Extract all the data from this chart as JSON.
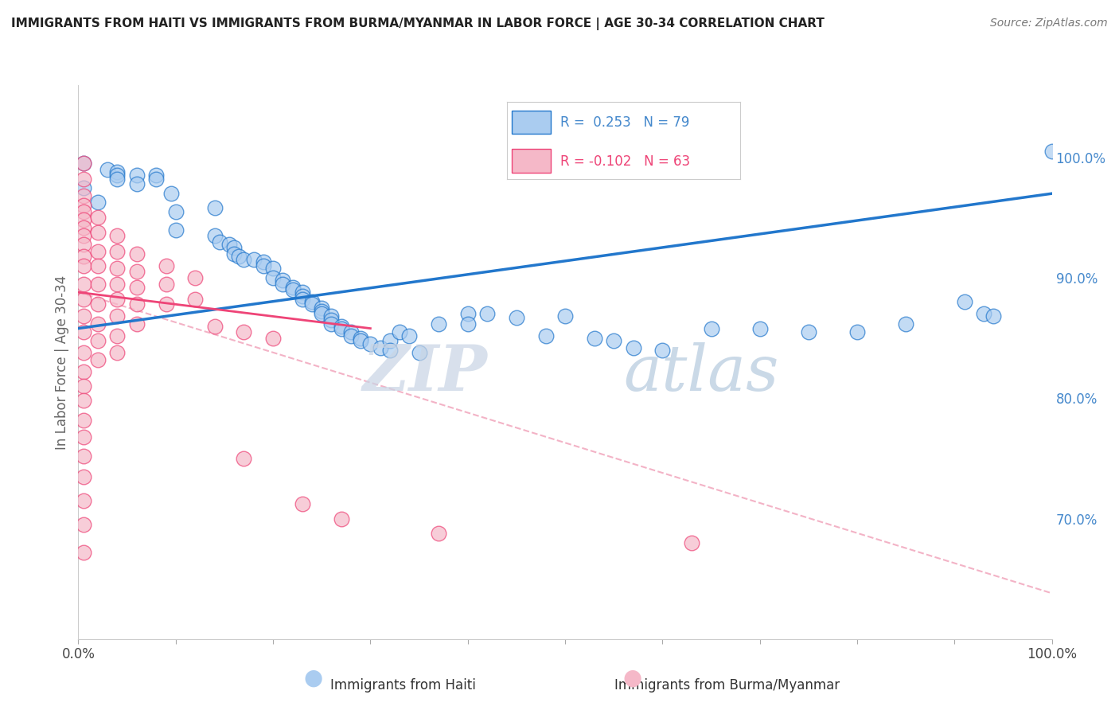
{
  "title": "IMMIGRANTS FROM HAITI VS IMMIGRANTS FROM BURMA/MYANMAR IN LABOR FORCE | AGE 30-34 CORRELATION CHART",
  "source": "Source: ZipAtlas.com",
  "ylabel": "In Labor Force | Age 30-34",
  "xlim": [
    0.0,
    1.0
  ],
  "ylim": [
    0.6,
    1.06
  ],
  "legend_haiti": {
    "R": 0.253,
    "N": 79
  },
  "legend_burma": {
    "R": -0.102,
    "N": 63
  },
  "haiti_scatter_color": "#aaccf0",
  "burma_scatter_color": "#f5b8c8",
  "haiti_line_color": "#2277cc",
  "burma_line_color": "#ee4477",
  "dashed_line_color": "#f0a0b8",
  "grid_color": "#ccccdd",
  "background_color": "#ffffff",
  "haiti_points": [
    [
      0.005,
      0.995
    ],
    [
      0.005,
      0.975
    ],
    [
      0.03,
      0.99
    ],
    [
      0.04,
      0.988
    ],
    [
      0.04,
      0.985
    ],
    [
      0.04,
      0.982
    ],
    [
      0.06,
      0.985
    ],
    [
      0.06,
      0.978
    ],
    [
      0.08,
      0.985
    ],
    [
      0.08,
      0.982
    ],
    [
      0.095,
      0.97
    ],
    [
      0.1,
      0.94
    ],
    [
      0.02,
      0.963
    ],
    [
      0.14,
      0.958
    ],
    [
      0.1,
      0.955
    ],
    [
      0.14,
      0.935
    ],
    [
      0.145,
      0.93
    ],
    [
      0.155,
      0.928
    ],
    [
      0.16,
      0.925
    ],
    [
      0.16,
      0.92
    ],
    [
      0.165,
      0.918
    ],
    [
      0.17,
      0.915
    ],
    [
      0.18,
      0.915
    ],
    [
      0.19,
      0.913
    ],
    [
      0.19,
      0.91
    ],
    [
      0.2,
      0.908
    ],
    [
      0.2,
      0.9
    ],
    [
      0.21,
      0.898
    ],
    [
      0.21,
      0.895
    ],
    [
      0.22,
      0.892
    ],
    [
      0.22,
      0.89
    ],
    [
      0.23,
      0.888
    ],
    [
      0.23,
      0.885
    ],
    [
      0.23,
      0.882
    ],
    [
      0.24,
      0.88
    ],
    [
      0.24,
      0.878
    ],
    [
      0.25,
      0.875
    ],
    [
      0.25,
      0.872
    ],
    [
      0.25,
      0.87
    ],
    [
      0.26,
      0.868
    ],
    [
      0.26,
      0.865
    ],
    [
      0.26,
      0.862
    ],
    [
      0.27,
      0.86
    ],
    [
      0.27,
      0.858
    ],
    [
      0.28,
      0.855
    ],
    [
      0.28,
      0.852
    ],
    [
      0.29,
      0.85
    ],
    [
      0.29,
      0.848
    ],
    [
      0.3,
      0.845
    ],
    [
      0.31,
      0.842
    ],
    [
      0.32,
      0.848
    ],
    [
      0.32,
      0.84
    ],
    [
      0.35,
      0.838
    ],
    [
      0.33,
      0.855
    ],
    [
      0.34,
      0.852
    ],
    [
      0.37,
      0.862
    ],
    [
      0.4,
      0.87
    ],
    [
      0.4,
      0.862
    ],
    [
      0.42,
      0.87
    ],
    [
      0.45,
      0.867
    ],
    [
      0.48,
      0.852
    ],
    [
      0.5,
      0.868
    ],
    [
      0.53,
      0.85
    ],
    [
      0.55,
      0.848
    ],
    [
      0.57,
      0.842
    ],
    [
      0.6,
      0.84
    ],
    [
      0.65,
      0.858
    ],
    [
      0.7,
      0.858
    ],
    [
      0.75,
      0.855
    ],
    [
      0.8,
      0.855
    ],
    [
      0.85,
      0.862
    ],
    [
      0.91,
      0.88
    ],
    [
      0.93,
      0.87
    ],
    [
      0.94,
      0.868
    ],
    [
      1.0,
      1.005
    ]
  ],
  "burma_points": [
    [
      0.005,
      0.995
    ],
    [
      0.005,
      0.982
    ],
    [
      0.005,
      0.968
    ],
    [
      0.005,
      0.96
    ],
    [
      0.005,
      0.955
    ],
    [
      0.005,
      0.948
    ],
    [
      0.005,
      0.942
    ],
    [
      0.005,
      0.935
    ],
    [
      0.005,
      0.928
    ],
    [
      0.005,
      0.918
    ],
    [
      0.005,
      0.91
    ],
    [
      0.005,
      0.895
    ],
    [
      0.005,
      0.882
    ],
    [
      0.005,
      0.868
    ],
    [
      0.005,
      0.855
    ],
    [
      0.005,
      0.838
    ],
    [
      0.005,
      0.822
    ],
    [
      0.005,
      0.81
    ],
    [
      0.005,
      0.798
    ],
    [
      0.005,
      0.782
    ],
    [
      0.005,
      0.768
    ],
    [
      0.005,
      0.752
    ],
    [
      0.005,
      0.735
    ],
    [
      0.005,
      0.715
    ],
    [
      0.005,
      0.695
    ],
    [
      0.005,
      0.672
    ],
    [
      0.02,
      0.95
    ],
    [
      0.02,
      0.938
    ],
    [
      0.02,
      0.922
    ],
    [
      0.02,
      0.91
    ],
    [
      0.02,
      0.895
    ],
    [
      0.02,
      0.878
    ],
    [
      0.02,
      0.862
    ],
    [
      0.02,
      0.848
    ],
    [
      0.02,
      0.832
    ],
    [
      0.04,
      0.935
    ],
    [
      0.04,
      0.922
    ],
    [
      0.04,
      0.908
    ],
    [
      0.04,
      0.895
    ],
    [
      0.04,
      0.882
    ],
    [
      0.04,
      0.868
    ],
    [
      0.04,
      0.852
    ],
    [
      0.04,
      0.838
    ],
    [
      0.06,
      0.92
    ],
    [
      0.06,
      0.905
    ],
    [
      0.06,
      0.892
    ],
    [
      0.06,
      0.878
    ],
    [
      0.06,
      0.862
    ],
    [
      0.09,
      0.91
    ],
    [
      0.09,
      0.895
    ],
    [
      0.09,
      0.878
    ],
    [
      0.12,
      0.9
    ],
    [
      0.12,
      0.882
    ],
    [
      0.14,
      0.86
    ],
    [
      0.17,
      0.855
    ],
    [
      0.17,
      0.75
    ],
    [
      0.2,
      0.85
    ],
    [
      0.23,
      0.712
    ],
    [
      0.27,
      0.7
    ],
    [
      0.37,
      0.688
    ],
    [
      0.63,
      0.68
    ]
  ],
  "haiti_trendline": {
    "x_start": 0.0,
    "y_start": 0.858,
    "x_end": 1.0,
    "y_end": 0.97
  },
  "burma_trendline": {
    "x_start": 0.0,
    "y_start": 0.888,
    "x_end": 0.3,
    "y_end": 0.858
  },
  "dashed_trendline": {
    "x_start": 0.0,
    "y_start": 0.888,
    "x_end": 1.0,
    "y_end": 0.638
  },
  "right_ytick_positions": [
    0.7,
    0.8,
    0.9,
    1.0
  ],
  "right_ytick_labels": [
    "70.0%",
    "80.0%",
    "90.0%",
    "100.0%"
  ],
  "bottom_xtick_positions": [
    0.0,
    0.1,
    0.2,
    0.3,
    0.4,
    0.5,
    0.6,
    0.7,
    0.8,
    0.9,
    1.0
  ],
  "bottom_xtick_labels": [
    "0.0%",
    "",
    "",
    "",
    "",
    "",
    "",
    "",
    "",
    "",
    "100.0%"
  ],
  "legend_haiti_color": "#aaccf0",
  "legend_haiti_edge": "#2277cc",
  "legend_burma_color": "#f5b8c8",
  "legend_burma_edge": "#ee4477",
  "title_color": "#222222",
  "axis_label_color": "#666666",
  "tick_label_color_right": "#4488cc",
  "tick_label_color_bottom": "#444444",
  "watermark_zip_color": "#d0d8e8",
  "watermark_atlas_color": "#b8cce0"
}
